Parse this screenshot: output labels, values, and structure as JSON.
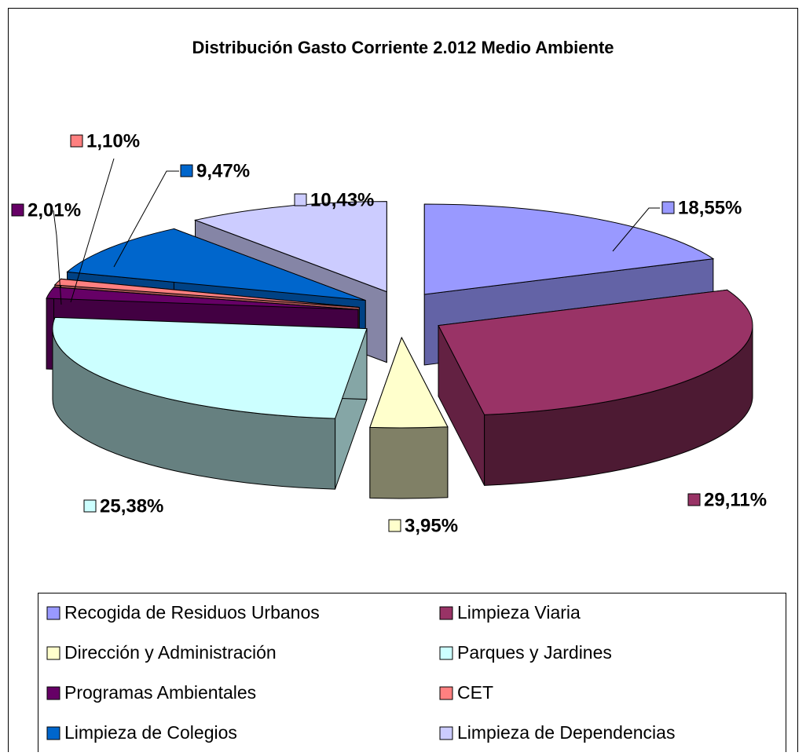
{
  "chart_data": {
    "type": "pie3d",
    "title": "Distribución Gasto Corriente 2.012 Medio Ambiente",
    "categories": [
      "Recogida de Residuos Urbanos",
      "Limpieza Viaria",
      "Dirección y Administración",
      "Parques y Jardines",
      "Programas Ambientales",
      "CET",
      "Limpieza de Colegios",
      "Limpieza de Dependencias"
    ],
    "values": [
      18.55,
      29.11,
      3.95,
      25.38,
      2.01,
      1.1,
      9.47,
      10.43
    ],
    "value_labels": [
      "18,55%",
      "29,11%",
      "3,95%",
      "25,38%",
      "2,01%",
      "1,10%",
      "9,47%",
      "10,43%"
    ],
    "colors": [
      "#9999ff",
      "#993366",
      "#ffffcc",
      "#ccffff",
      "#660066",
      "#ff8080",
      "#0066cc",
      "#ccccff"
    ]
  }
}
